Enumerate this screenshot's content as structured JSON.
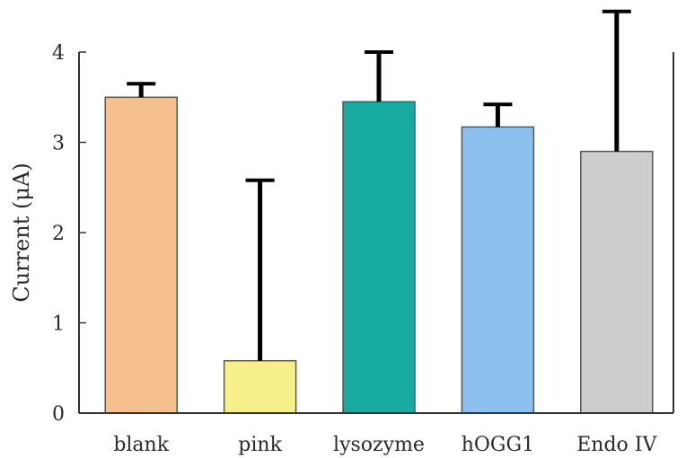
{
  "chart_data": {
    "type": "bar",
    "categories": [
      "blank",
      "pink",
      "lysozyme",
      "hOGG1",
      "Endo IV"
    ],
    "values": [
      3.5,
      0.58,
      3.45,
      3.17,
      2.9
    ],
    "error_upper": [
      0.15,
      2.0,
      0.55,
      0.25,
      1.55
    ],
    "ylabel": "Current (μA)",
    "ylim": [
      0,
      4
    ],
    "yticks": [
      "0",
      "1",
      "2",
      "3",
      "4"
    ],
    "bar_colors": [
      "#f5c08e",
      "#f7f08a",
      "#17aaa0",
      "#8cc0ef",
      "#cdcdcd"
    ],
    "bar_stroke": "#555555",
    "error_color": "#000000",
    "grid": false
  }
}
